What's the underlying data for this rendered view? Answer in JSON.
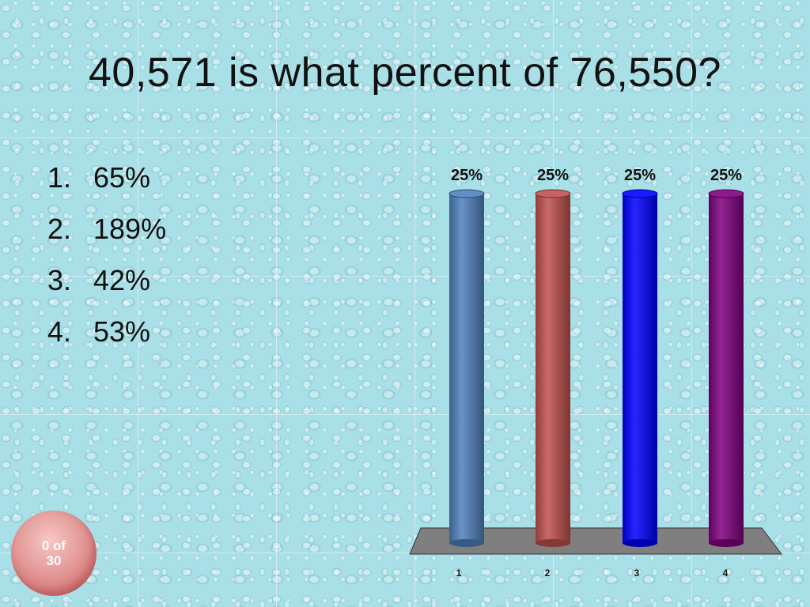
{
  "slide": {
    "title": "40,571 is what percent of 76,550?",
    "options": [
      {
        "number": "1.",
        "text": "65%"
      },
      {
        "number": "2.",
        "text": "189%"
      },
      {
        "number": "3.",
        "text": "42%"
      },
      {
        "number": "4.",
        "text": "53%"
      }
    ],
    "response_counter": "0 of 30"
  },
  "chart_data": {
    "type": "bar",
    "categories": [
      "1",
      "2",
      "3",
      "4"
    ],
    "values": [
      25,
      25,
      25,
      25
    ],
    "data_labels": [
      "25%",
      "25%",
      "25%",
      "25%"
    ],
    "colors": [
      "#4f81bd",
      "#c0504d",
      "#0000ff",
      "#800080"
    ],
    "floor_color": "#7f7f7f",
    "ylim": [
      0,
      25
    ],
    "grid": false,
    "legend": "none"
  }
}
